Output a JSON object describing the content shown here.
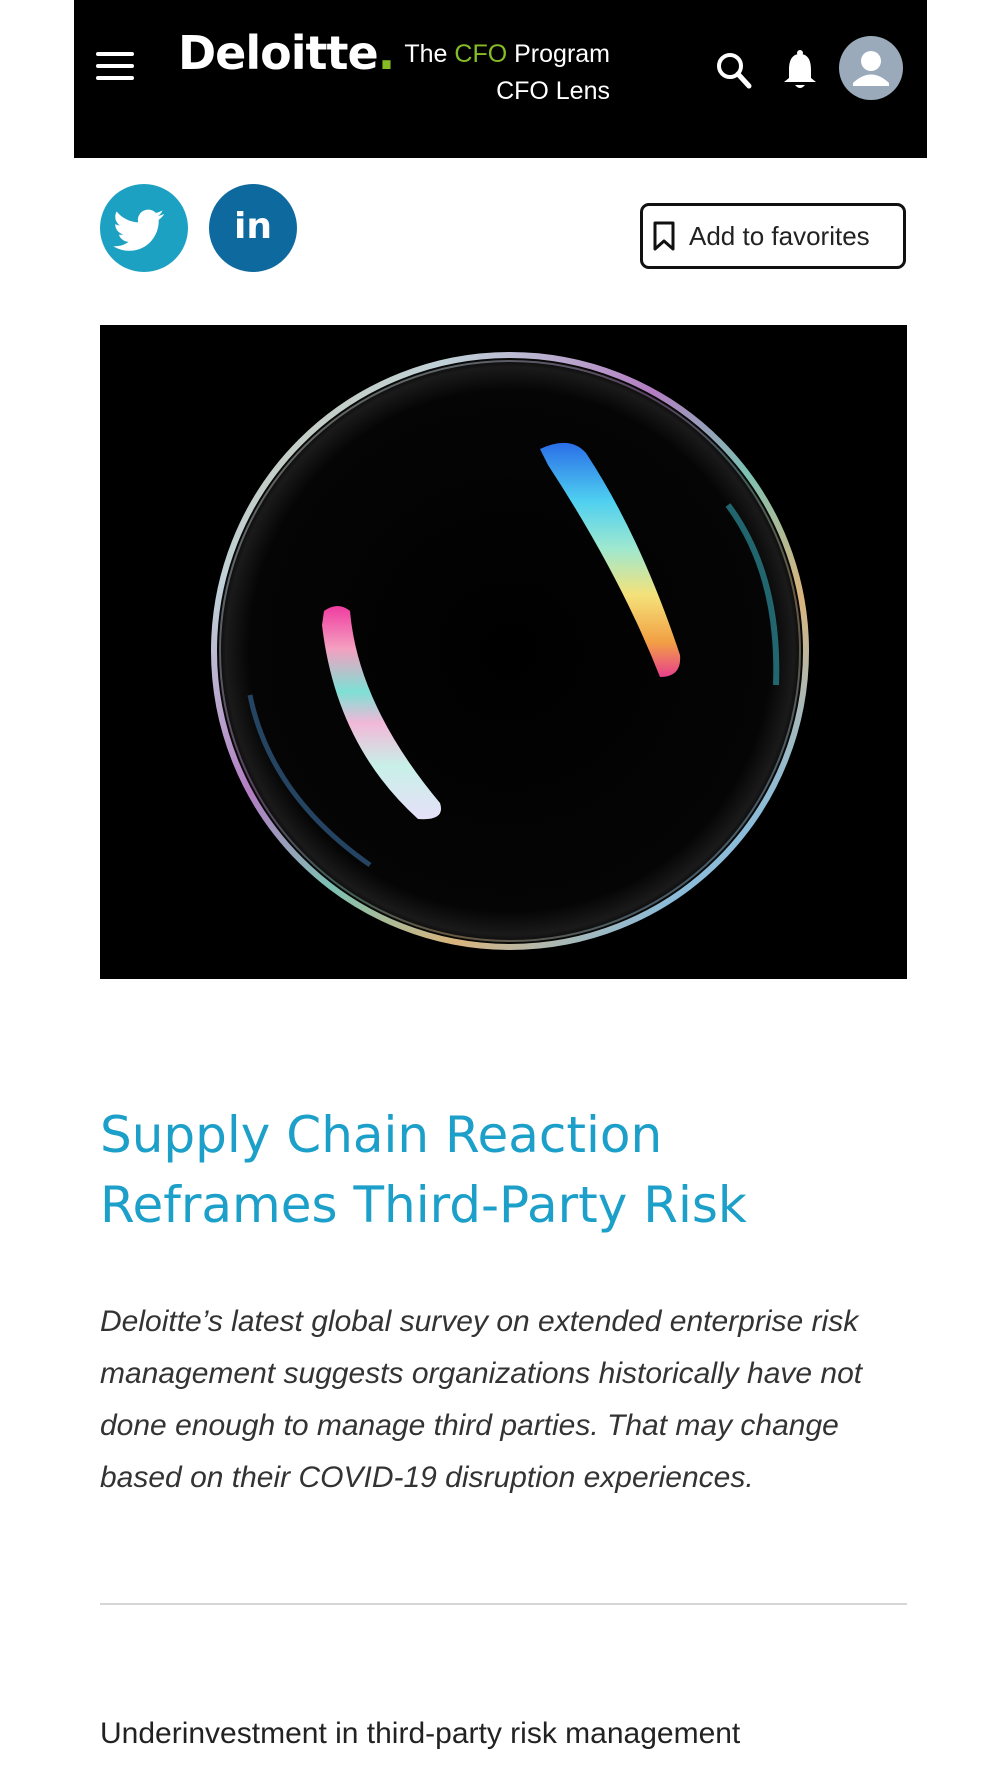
{
  "header": {
    "logo_text": "Deloitte",
    "logo_dot": ".",
    "program_prefix": "The ",
    "program_cfo": "CFO",
    "program_suffix": " Program",
    "program_sub": "CFO Lens",
    "icons": [
      "menu-icon",
      "search-icon",
      "bell-icon",
      "user-avatar-icon"
    ]
  },
  "social": {
    "twitter_icon": "twitter-icon",
    "linkedin_label": "in"
  },
  "favorites": {
    "icon": "bookmark-icon",
    "label": "Add to favorites"
  },
  "article": {
    "title": "Supply Chain Reaction Reframes Third-Party Risk",
    "lede": "Deloitte’s latest global survey on extended enterprise risk management suggests organizations historically have not done enough to manage third parties. That may change based on their COVID-19 disruption experiences.",
    "body_start": "Underinvestment in third-party risk management"
  },
  "colors": {
    "brand_green": "#86BC25",
    "title_blue": "#1c9fc9",
    "twitter": "#1da1c2",
    "linkedin": "#0e6a9e"
  }
}
